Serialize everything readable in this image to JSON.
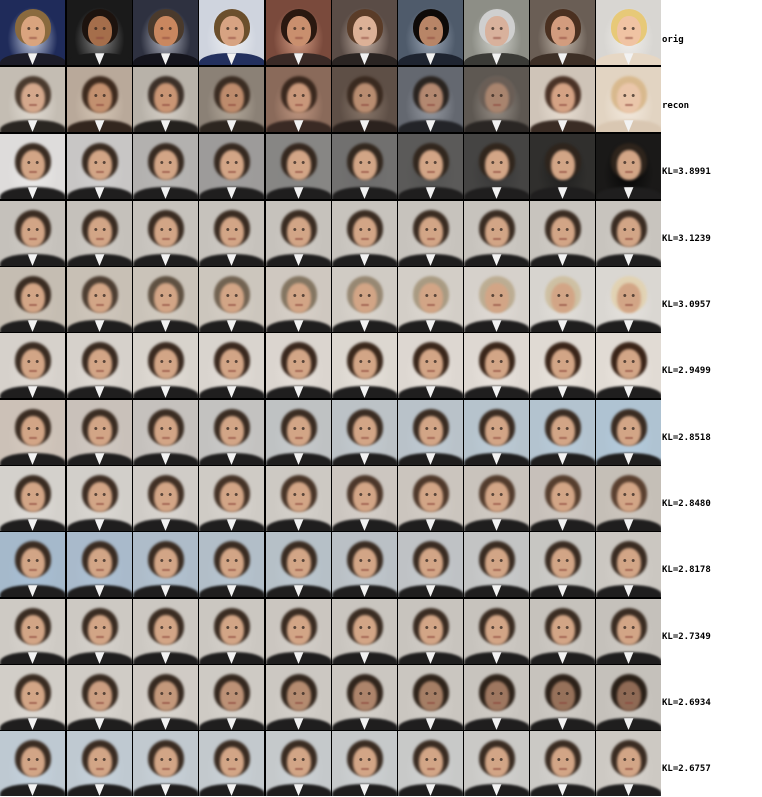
{
  "rows": [
    {
      "label": "orig",
      "kind": "original"
    },
    {
      "label": "recon",
      "kind": "reconstruction"
    },
    {
      "label": "KL=3.8991",
      "kind": "traversal"
    },
    {
      "label": "KL=3.1239",
      "kind": "traversal"
    },
    {
      "label": "KL=3.0957",
      "kind": "traversal"
    },
    {
      "label": "KL=2.9499",
      "kind": "traversal"
    },
    {
      "label": "KL=2.8518",
      "kind": "traversal"
    },
    {
      "label": "KL=2.8480",
      "kind": "traversal"
    },
    {
      "label": "KL=2.8178",
      "kind": "traversal"
    },
    {
      "label": "KL=2.7349",
      "kind": "traversal"
    },
    {
      "label": "KL=2.6934",
      "kind": "traversal"
    },
    {
      "label": "KL=2.6757",
      "kind": "traversal"
    }
  ],
  "columns": 10,
  "palette": {
    "grid_border": "#000000",
    "label_text": "#000000",
    "background": "#ffffff"
  },
  "orig_faces": [
    {
      "bg": "#1f2b5a",
      "bg2": "#c9d2e4",
      "hair": "#8a6a3e",
      "skin": "#d9a47e",
      "suit": "#1c1c28"
    },
    {
      "bg": "#1a1a1a",
      "bg2": "#8a8a8a",
      "hair": "#1d130e",
      "skin": "#a56e4b",
      "suit": "#1a1a1a"
    },
    {
      "bg": "#2e3140",
      "bg2": "#b5b8c4",
      "hair": "#4a3a2c",
      "skin": "#c9875f",
      "suit": "#14141c"
    },
    {
      "bg": "#cfd4de",
      "bg2": "#eef0f4",
      "hair": "#6b4f2c",
      "skin": "#d7a382",
      "suit": "#23305e"
    },
    {
      "bg": "#7a4a3c",
      "bg2": "#d79e84",
      "hair": "#2a1810",
      "skin": "#c98f6e",
      "suit": "#3a2a26"
    },
    {
      "bg": "#5a4c46",
      "bg2": "#c7b4a8",
      "hair": "#5a3c28",
      "skin": "#dcb197",
      "suit": "#2a2422"
    },
    {
      "bg": "#4f5b6b",
      "bg2": "#9ea9b8",
      "hair": "#0e0a08",
      "skin": "#b88567",
      "suit": "#1e2430"
    },
    {
      "bg": "#8d8e86",
      "bg2": "#d4d5cf",
      "hair": "#cfcfcf",
      "skin": "#d8b19c",
      "suit": "#3a3a36"
    },
    {
      "bg": "#6a5e55",
      "bg2": "#c4b9ad",
      "hair": "#4a3020",
      "skin": "#d29c7e",
      "suit": "#3d2f26"
    },
    {
      "bg": "#d8d6d2",
      "bg2": "#f1efec",
      "hair": "#e7c978",
      "skin": "#f0c3a3",
      "suit": "#e6d7c4"
    }
  ],
  "recon_faces": [
    {
      "bg": "#c4bdb3",
      "bg2": "#e4ded6",
      "hair": "#4a3a2e",
      "skin": "#d4a88c",
      "suit": "#2a2622"
    },
    {
      "bg": "#b9a99a",
      "bg2": "#d8c9b8",
      "hair": "#3d2a1e",
      "skin": "#c2906f",
      "suit": "#33261e"
    },
    {
      "bg": "#b8b2a9",
      "bg2": "#d9d3cb",
      "hair": "#3c3028",
      "skin": "#c99574",
      "suit": "#24211e"
    },
    {
      "bg": "#8b8176",
      "bg2": "#b8ad9f",
      "hair": "#3a2c22",
      "skin": "#bd8b6c",
      "suit": "#2d2620"
    },
    {
      "bg": "#8a6a5a",
      "bg2": "#c49a84",
      "hair": "#3a281e",
      "skin": "#c8977a",
      "suit": "#3a2a24"
    },
    {
      "bg": "#5e4f46",
      "bg2": "#8d7b6e",
      "hair": "#3a2a20",
      "skin": "#b88c70",
      "suit": "#2b221e"
    },
    {
      "bg": "#646870",
      "bg2": "#9a9ea6",
      "hair": "#2a2420",
      "skin": "#b38870",
      "suit": "#232428"
    },
    {
      "bg": "#5e5852",
      "bg2": "#9a928a",
      "hair": "#6a5e56",
      "skin": "#a8846e",
      "suit": "#2a2624"
    },
    {
      "bg": "#cfc4b8",
      "bg2": "#ece2d6",
      "hair": "#4a3226",
      "skin": "#d4a284",
      "suit": "#3a2c24"
    },
    {
      "bg": "#e2d4c2",
      "bg2": "#f4ebe0",
      "hair": "#d8b98e",
      "skin": "#eac6aa",
      "suit": "#d9c7b2"
    }
  ],
  "traversal_base": {
    "bg": "#d2cec8",
    "bg2": "#ece8e2",
    "hair": "#3a2c22",
    "skin": "#d2a586",
    "suit": "#1f1e1e"
  },
  "traversal_variants": [
    {
      "start_bg": "#ecebea",
      "end_bg": "#050505",
      "hair_end": "#2e241c"
    },
    {
      "start_bg": "#cfcbc5",
      "end_bg": "#d2cec8",
      "hair_end": "#3a2c22"
    },
    {
      "start_bg": "#cfc6ba",
      "end_bg": "#e7e4e0",
      "hair_end": "#e1d2b3"
    },
    {
      "start_bg": "#e2ddd7",
      "end_bg": "#efe9e2",
      "hair_end": "#3a2418"
    },
    {
      "start_bg": "#d7cbc0",
      "end_bg": "#b5cde0",
      "hair_end": "#3a2c22"
    },
    {
      "start_bg": "#e0ddd9",
      "end_bg": "#cfc8c0",
      "hair_end": "#5a4030"
    },
    {
      "start_bg": "#a9c1d8",
      "end_bg": "#d6d2cc",
      "hair_end": "#3a2c22"
    },
    {
      "start_bg": "#d9d5cf",
      "end_bg": "#cfcbc5",
      "hair_end": "#3a2c22"
    },
    {
      "start_bg": "#dedad4",
      "end_bg": "#cfcbc5",
      "hair_end": "#2a2018",
      "skin_end": "#8f6a55"
    },
    {
      "start_bg": "#c6d4e0",
      "end_bg": "#d8d4ce",
      "hair_end": "#3a2c22"
    }
  ]
}
